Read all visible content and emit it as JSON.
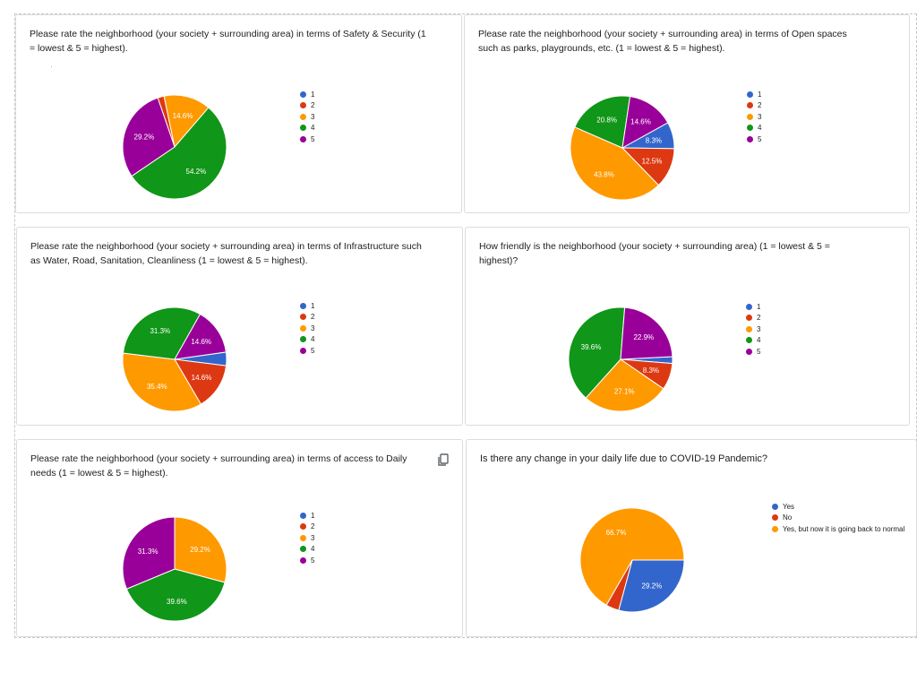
{
  "colors": {
    "1": "#3366cc",
    "2": "#dc3912",
    "3": "#ff9900",
    "4": "#109618",
    "5": "#990099"
  },
  "legend_labels": [
    "1",
    "2",
    "3",
    "4",
    "5"
  ],
  "icons": {
    "copy": "copy-icon"
  },
  "cards": [
    {
      "question": "Please rate the neighborhood (your society + surrounding area) in terms of Safety & Security (1 = lowest & 5 = highest)."
    },
    {
      "question": "Please rate the neighborhood (your society + surrounding area) in terms of Open spaces such as parks, playgrounds, etc. (1 = lowest & 5 = highest)."
    },
    {
      "question": "Please rate the neighborhood (your society + surrounding area) in terms of Infrastructure such as Water, Road, Sanitation, Cleanliness (1 = lowest & 5 = highest)."
    },
    {
      "question": "How friendly is the neighborhood (your society + surrounding area) (1 = lowest & 5 = highest)?"
    },
    {
      "question": "Please rate the neighborhood (your society + surrounding area) in terms of access to Daily needs (1 = lowest & 5 = highest)."
    },
    {
      "question": "Is there any change in your daily life due to COVID-19 Pandemic?"
    }
  ],
  "chart_data": [
    {
      "type": "pie",
      "title": "Please rate the neighborhood (your society + surrounding area) in terms of Safety & Security (1 = lowest & 5 = highest).",
      "categories": [
        "1",
        "2",
        "3",
        "4",
        "5"
      ],
      "values": [
        0,
        2.0,
        14.6,
        54.2,
        29.2
      ],
      "labels": [
        "",
        "",
        "14.6%",
        "54.2%",
        "29.2%"
      ],
      "legend_position": "right"
    },
    {
      "type": "pie",
      "title": "Please rate the neighborhood (your society + surrounding area) in terms of Open spaces such as parks, playgrounds, etc. (1 = lowest & 5 = highest).",
      "categories": [
        "1",
        "2",
        "3",
        "4",
        "5"
      ],
      "values": [
        8.3,
        12.5,
        43.8,
        20.8,
        14.6
      ],
      "labels": [
        "8.3%",
        "12.5%",
        "43.8%",
        "20.8%",
        "14.6%"
      ],
      "legend_position": "right"
    },
    {
      "type": "pie",
      "title": "Please rate the neighborhood (your society + surrounding area) in terms of Infrastructure such as Water, Road, Sanitation, Cleanliness (1 = lowest & 5 = highest).",
      "categories": [
        "1",
        "2",
        "3",
        "4",
        "5"
      ],
      "values": [
        4.2,
        14.6,
        35.4,
        31.3,
        14.6
      ],
      "labels": [
        "",
        "14.6%",
        "35.4%",
        "31.3%",
        "14.6%"
      ],
      "legend_position": "right"
    },
    {
      "type": "pie",
      "title": "How friendly is the neighborhood (your society + surrounding area) (1 = lowest & 5 = highest)?",
      "categories": [
        "1",
        "2",
        "3",
        "4",
        "5"
      ],
      "values": [
        2.1,
        8.3,
        27.1,
        39.6,
        22.9
      ],
      "labels": [
        "",
        "8.3%",
        "27.1%",
        "39.6%",
        "22.9%"
      ],
      "legend_position": "right"
    },
    {
      "type": "pie",
      "title": "Please rate the neighborhood (your society + surrounding area) in terms of access to Daily needs (1 = lowest & 5 = highest).",
      "categories": [
        "1",
        "2",
        "3",
        "4",
        "5"
      ],
      "values": [
        0,
        0,
        29.2,
        39.6,
        31.3
      ],
      "labels": [
        "",
        "",
        "29.2%",
        "39.6%",
        "31.3%"
      ],
      "legend_position": "right"
    },
    {
      "type": "pie",
      "title": "Is there any change in your daily life due to COVID-19 Pandemic?",
      "categories": [
        "Yes",
        "No",
        "Yes, but now it is going back to normal"
      ],
      "values": [
        29.2,
        4.1,
        66.7
      ],
      "labels": [
        "29.2%",
        "",
        "66.7%"
      ],
      "legend_position": "right"
    }
  ]
}
